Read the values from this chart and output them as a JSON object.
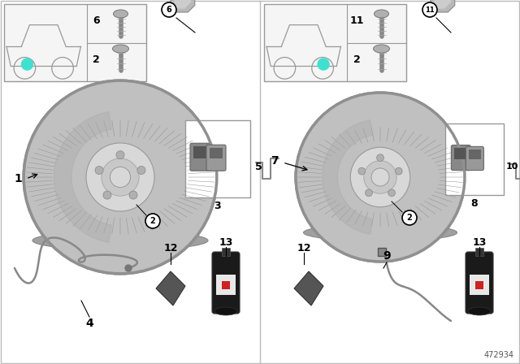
{
  "part_number": "472934",
  "bg_color": "#ffffff",
  "disc_color": "#b8b8b8",
  "disc_edge_color": "#888888",
  "disc_dark": "#999999",
  "disc_mid": "#c0c0c0",
  "disc_light": "#d8d8d8",
  "bracket_color": "#b0b0b0",
  "can_body": "#1a1a1a",
  "can_label_bg": "#f0f0f0",
  "can_red": "#cc2222",
  "paste_color": "#555555",
  "wire_color": "#888888",
  "pad_color": "#888888"
}
